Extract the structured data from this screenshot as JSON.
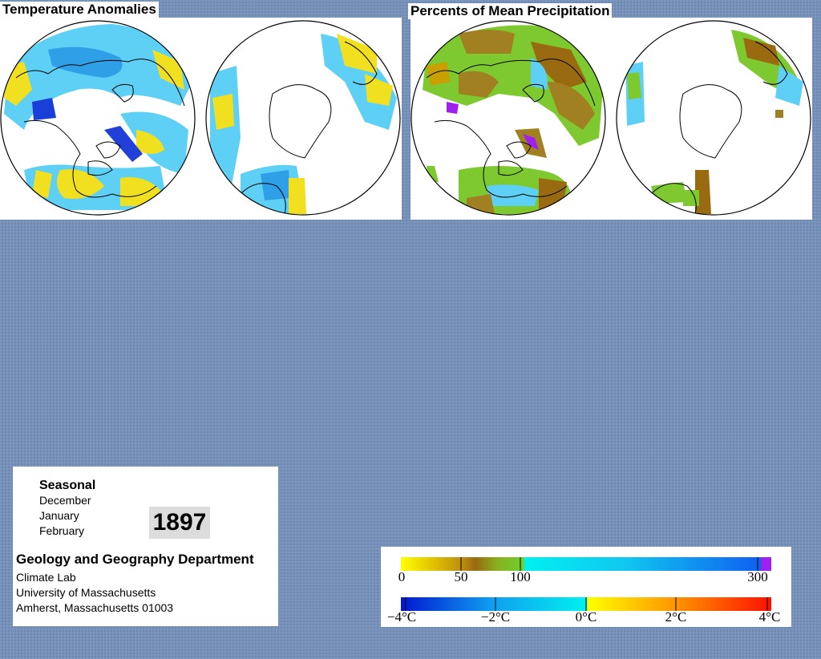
{
  "panels": {
    "temperature": {
      "title": "Temperature Anomalies"
    },
    "precipitation": {
      "title": "Percents of Mean Precipitation"
    }
  },
  "info": {
    "period_type": "Seasonal",
    "months": [
      "December",
      "January",
      "February"
    ],
    "year": "1897",
    "department": "Geology and Geography Department",
    "lab": "Climate Lab",
    "university": "University of Massachusetts",
    "address": "Amherst, Massachusetts 01003"
  },
  "legends": {
    "precipitation": {
      "ticks": [
        "0",
        "50",
        "100",
        "300"
      ],
      "colors": [
        "#ffff00",
        "#c8a000",
        "#9a6a10",
        "#7ec820",
        "#00f0f0",
        "#1060f0",
        "#a020f0"
      ]
    },
    "temperature": {
      "ticks": [
        "−4°C",
        "−2°C",
        "0°C",
        "2°C",
        "4°C"
      ],
      "colors": [
        "#0018d0",
        "#10a0f0",
        "#00f0f0",
        "#ffff00",
        "#ff9000",
        "#ff1000"
      ]
    }
  },
  "colors": {
    "background": "#7590b9",
    "cold_strong": "#1a3fd8",
    "cold": "#30b8f0",
    "cold_light": "#70e0f8",
    "warm": "#f0e020",
    "dry": "#a08020",
    "wet": "#60c030",
    "very_wet": "#a020f0"
  }
}
